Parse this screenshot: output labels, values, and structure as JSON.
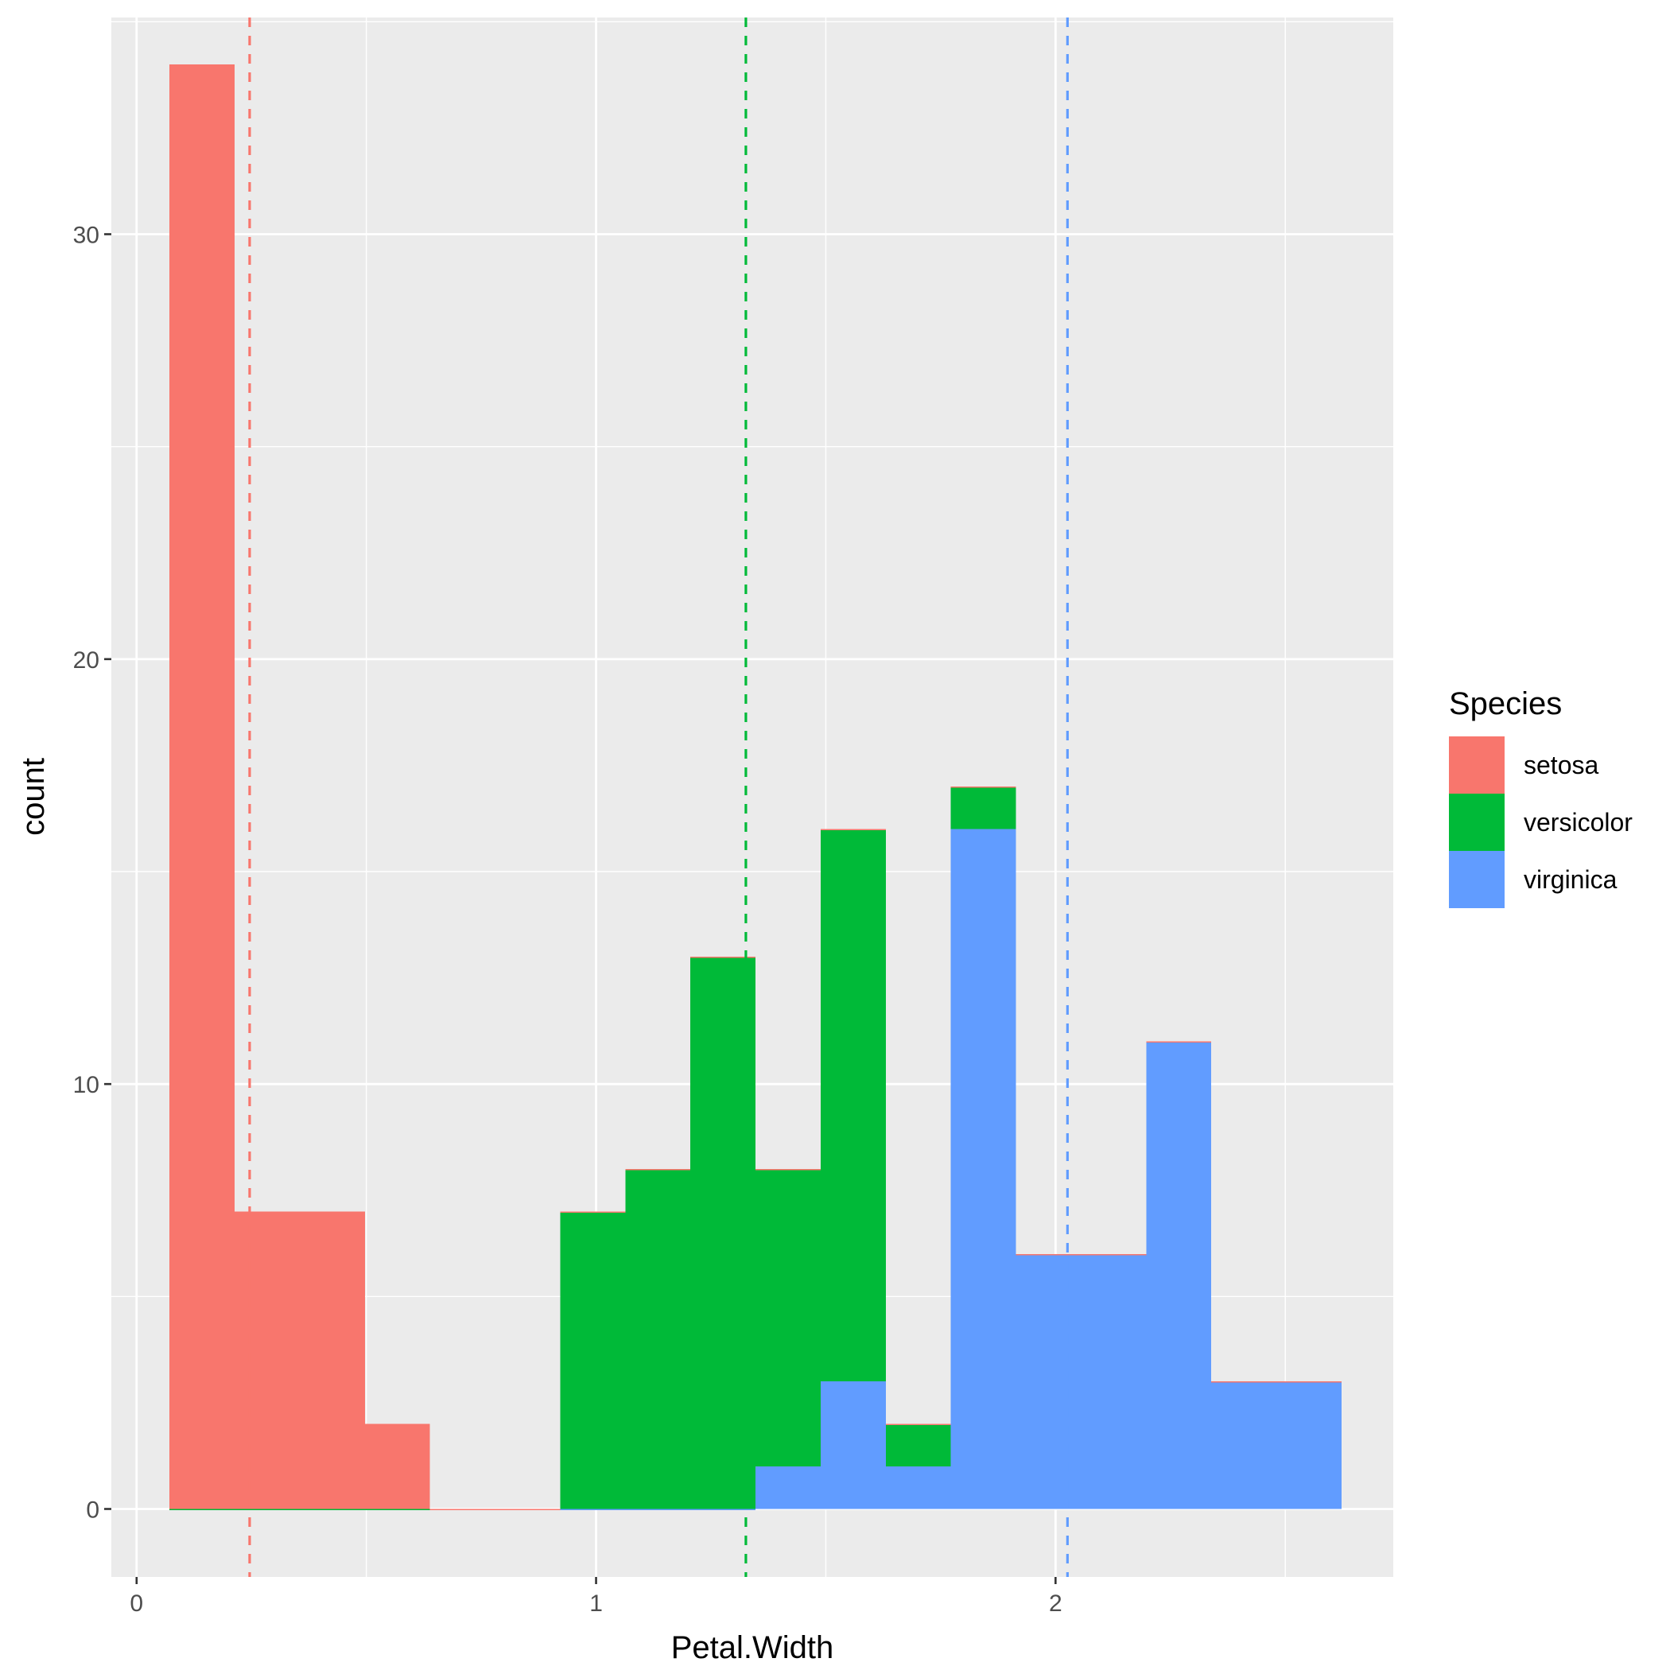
{
  "chart_data": {
    "type": "bar",
    "xlabel": "Petal.Width",
    "ylabel": "count",
    "xlim": [
      -0.055,
      2.735
    ],
    "ylim": [
      -1.6,
      35.1
    ],
    "x_ticks": [
      "0",
      "1",
      "2"
    ],
    "y_ticks": [
      "0",
      "10",
      "20",
      "30"
    ],
    "grid": true,
    "bin_edges": [
      0.0717,
      0.2134,
      0.3551,
      0.4968,
      0.6385,
      0.7802,
      0.9219,
      1.0636,
      1.2053,
      1.347,
      1.4887,
      1.6304,
      1.7721,
      1.9138,
      2.0555,
      2.1972,
      2.3389,
      2.4806,
      2.6223
    ],
    "series": [
      {
        "name": "setosa",
        "color": "#F8766D",
        "mean": 0.246,
        "values": [
          34,
          7,
          7,
          2,
          0,
          0,
          0,
          0,
          0,
          0,
          0,
          0,
          0,
          0,
          0,
          0,
          0,
          0
        ]
      },
      {
        "name": "versicolor",
        "color": "#00BA38",
        "mean": 1.326,
        "values": [
          0,
          0,
          0,
          0,
          0,
          0,
          7,
          8,
          13,
          7,
          13,
          1,
          1,
          0,
          0,
          0,
          0,
          0
        ]
      },
      {
        "name": "virginica",
        "color": "#619CFF",
        "mean": 2.026,
        "values": [
          0,
          0,
          0,
          0,
          0,
          0,
          0,
          0,
          0,
          1,
          3,
          1,
          16,
          6,
          6,
          11,
          3,
          3
        ]
      }
    ],
    "legend": {
      "title": "Species",
      "position": "right"
    }
  }
}
